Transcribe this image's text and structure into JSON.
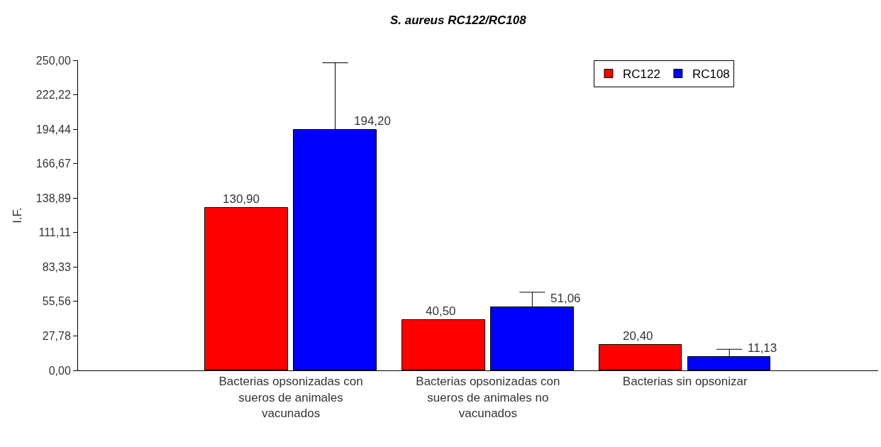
{
  "chart_data": {
    "type": "bar",
    "title": "S. aureus RC122/RC108",
    "ylabel": "I.F.",
    "categories": [
      "Bacterias opsonizadas con sueros de animales vacunados",
      "Bacterias opsonizadas con sueros de animales no vacunados",
      "Bacterias sin opsonizar"
    ],
    "series": [
      {
        "name": "RC122",
        "color": "#ff0000",
        "values": [
          130.9,
          40.5,
          20.4
        ],
        "value_labels": [
          "130,90",
          "40,50",
          "20,40"
        ]
      },
      {
        "name": "RC108",
        "color": "#0000ff",
        "values": [
          194.2,
          51.06,
          11.13
        ],
        "value_labels": [
          "194,20",
          "51,06",
          "11,13"
        ],
        "errors": [
          [
            194.2,
            248
          ],
          [
            51.06,
            63
          ],
          [
            11.13,
            17
          ]
        ]
      }
    ],
    "ylim": [
      0,
      250
    ],
    "yticks": [
      {
        "value": 0,
        "label": "0,00"
      },
      {
        "value": 27.78,
        "label": "27,78"
      },
      {
        "value": 55.56,
        "label": "55,56"
      },
      {
        "value": 83.33,
        "label": "83,33"
      },
      {
        "value": 111.11,
        "label": "111,11"
      },
      {
        "value": 138.89,
        "label": "138,89"
      },
      {
        "value": 166.67,
        "label": "166,67"
      },
      {
        "value": 194.44,
        "label": "194,44"
      },
      {
        "value": 222.22,
        "label": "222,22"
      },
      {
        "value": 250,
        "label": "250,00"
      }
    ],
    "legend": "top right"
  }
}
